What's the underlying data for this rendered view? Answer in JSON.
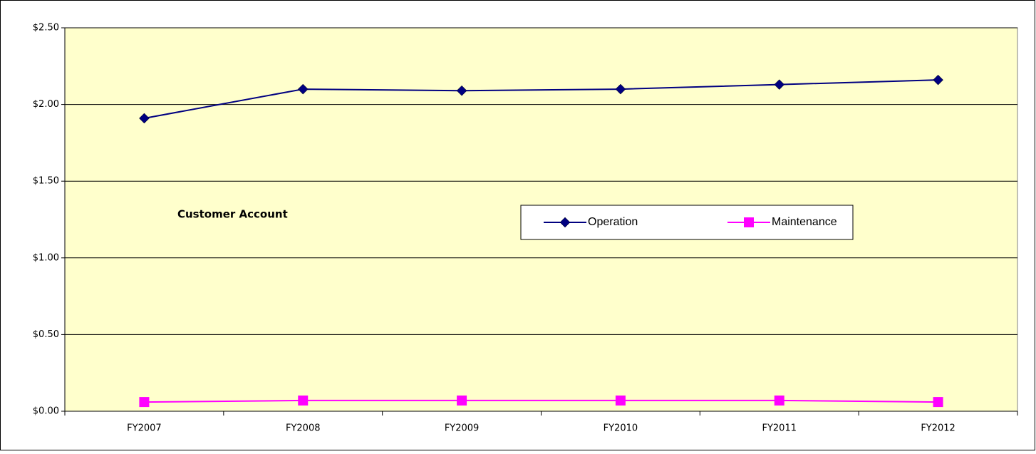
{
  "chart_data": {
    "type": "line",
    "annotation": "Customer Account",
    "categories": [
      "FY2007",
      "FY2008",
      "FY2009",
      "FY2010",
      "FY2011",
      "FY2012"
    ],
    "series": [
      {
        "name": "Operation",
        "color": "#000080",
        "marker": "diamond",
        "values": [
          1.91,
          2.1,
          2.09,
          2.1,
          2.13,
          2.16
        ]
      },
      {
        "name": "Maintenance",
        "color": "#ff00ff",
        "marker": "square",
        "values": [
          0.06,
          0.07,
          0.07,
          0.07,
          0.07,
          0.06
        ]
      }
    ],
    "ylim": [
      0,
      2.5
    ],
    "yticks": [
      {
        "value": 0,
        "label": "$0.00"
      },
      {
        "value": 0.5,
        "label": "$0.50"
      },
      {
        "value": 1,
        "label": "$1.00"
      },
      {
        "value": 1.5,
        "label": "$1.50"
      },
      {
        "value": 2,
        "label": "$2.00"
      },
      {
        "value": 2.5,
        "label": "$2.50"
      }
    ],
    "grid": true,
    "legend": "center",
    "background": "#ffffcc"
  }
}
